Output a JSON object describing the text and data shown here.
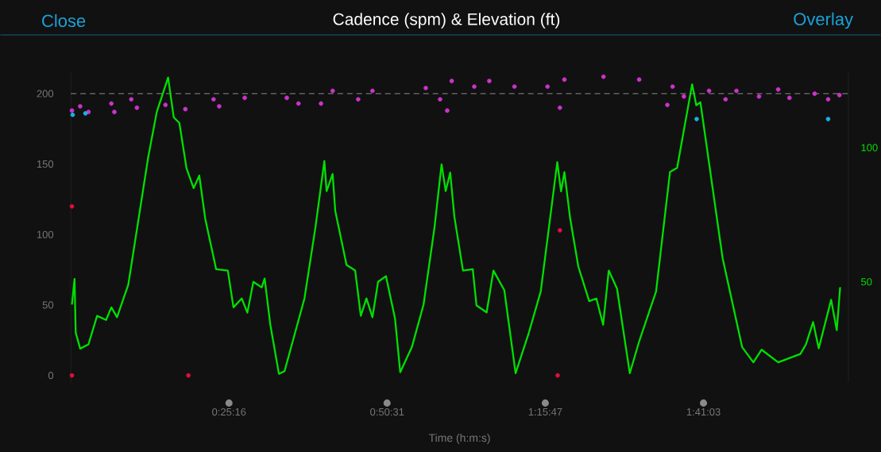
{
  "chart_data": {
    "type": "scatter",
    "title": "Cadence (spm) & Elevation (ft)",
    "xlabel": "Time (h:m:s)",
    "annotations": [
      "Close",
      "Overlay"
    ],
    "xlim": [
      0,
      2.07
    ],
    "xticks": [
      {
        "value": 0.4211,
        "label": "0:25:16"
      },
      {
        "value": 0.8419,
        "label": "0:50:31"
      },
      {
        "value": 1.2631,
        "label": "1:15:47"
      },
      {
        "value": 1.6842,
        "label": "1:41:03"
      }
    ],
    "ylim": [
      -5,
      215
    ],
    "yticks": [
      0,
      50,
      100,
      150,
      200
    ],
    "y2lim": [
      12.5,
      128
    ],
    "y2ticks": [
      50,
      100
    ],
    "ref_lines": [
      {
        "axis": "y",
        "value": 200,
        "color": "#8c8c8c",
        "line_style": "dashed"
      }
    ],
    "series": [
      {
        "color": "#cc33cc",
        "x": [
          0.003,
          0.025,
          0.047,
          0.108,
          0.116,
          0.161,
          0.176,
          0.252,
          0.305,
          0.38,
          0.395,
          0.463,
          0.575,
          0.606,
          0.666,
          0.697,
          0.765,
          0.803,
          0.945,
          0.983,
          1.002,
          1.014,
          1.074,
          1.114,
          1.181,
          1.269,
          1.302,
          1.314,
          1.418,
          1.513,
          1.588,
          1.602,
          1.632,
          1.699,
          1.743,
          1.772,
          1.832,
          1.883,
          1.913,
          1.98,
          2.016,
          2.046
        ],
        "values": [
          188,
          191,
          187,
          193,
          187,
          196,
          190,
          192,
          189,
          196,
          191,
          197,
          197,
          193,
          193,
          202,
          196,
          202,
          204,
          196,
          188,
          209,
          205,
          209,
          205,
          205,
          190,
          210,
          212,
          210,
          192,
          205,
          198,
          202,
          196,
          202,
          198,
          203,
          197,
          200,
          196,
          199
        ]
      },
      {
        "color": "#1ab2e6",
        "x": [
          0.005,
          0.039,
          1.666,
          2.016
        ],
        "values": [
          185,
          186,
          182,
          182
        ]
      },
      {
        "color": "#e0103a",
        "x": [
          0.003,
          0.003,
          0.313,
          1.296,
          1.302
        ],
        "values": [
          120,
          0,
          0,
          0,
          103
        ]
      },
      {
        "type": "line",
        "axis": "y2",
        "color": "#00e000",
        "x": [
          0.003,
          0.01,
          0.013,
          0.025,
          0.047,
          0.07,
          0.094,
          0.108,
          0.123,
          0.153,
          0.206,
          0.229,
          0.259,
          0.274,
          0.289,
          0.308,
          0.327,
          0.342,
          0.358,
          0.387,
          0.418,
          0.433,
          0.455,
          0.47,
          0.486,
          0.508,
          0.516,
          0.531,
          0.554,
          0.569,
          0.622,
          0.651,
          0.675,
          0.681,
          0.697,
          0.704,
          0.734,
          0.757,
          0.772,
          0.787,
          0.803,
          0.818,
          0.839,
          0.863,
          0.877,
          0.908,
          0.939,
          0.968,
          0.987,
          0.998,
          1.01,
          1.021,
          1.044,
          1.07,
          1.08,
          1.107,
          1.125,
          1.154,
          1.184,
          1.218,
          1.251,
          1.295,
          1.305,
          1.314,
          1.329,
          1.351,
          1.38,
          1.399,
          1.417,
          1.432,
          1.454,
          1.488,
          1.513,
          1.558,
          1.595,
          1.614,
          1.654,
          1.665,
          1.676,
          1.735,
          1.787,
          1.817,
          1.839,
          1.883,
          1.942,
          1.957,
          1.976,
          1.991,
          2.024,
          2.039,
          2.048
        ],
        "values": [
          41.5,
          51.1,
          31.1,
          25.1,
          26.7,
          37.3,
          35.8,
          40.5,
          36.8,
          48.9,
          96.4,
          113.4,
          126.1,
          111.3,
          109.2,
          92.3,
          84.9,
          89.6,
          73.4,
          54.7,
          54.2,
          40.5,
          43.8,
          38.5,
          50.0,
          47.9,
          51.2,
          34.1,
          15.7,
          16.7,
          43.8,
          70.1,
          95.0,
          83.8,
          90.2,
          76.4,
          56.3,
          54.2,
          37.3,
          43.8,
          36.8,
          50.0,
          52.1,
          36.4,
          16.3,
          25.7,
          41.5,
          70.1,
          93.8,
          83.8,
          90.7,
          74.3,
          54.2,
          54.7,
          41.2,
          38.6,
          54.2,
          46.9,
          15.9,
          30.4,
          46.4,
          94.6,
          83.7,
          90.9,
          73.9,
          55.7,
          42.8,
          43.8,
          34.0,
          54.2,
          47.5,
          15.9,
          27.8,
          46.4,
          90.9,
          92.5,
          123.6,
          115.8,
          116.9,
          58.9,
          25.7,
          20.0,
          24.7,
          20.0,
          23.1,
          26.7,
          35.0,
          25.2,
          43.3,
          32.0,
          48.0
        ]
      }
    ]
  }
}
